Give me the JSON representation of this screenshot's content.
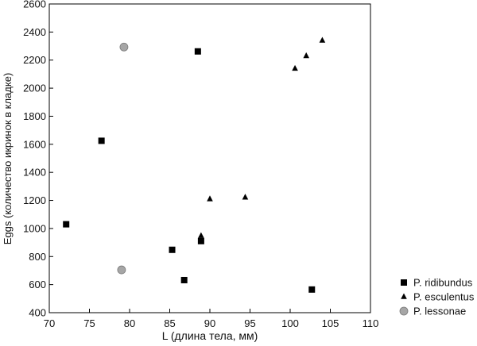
{
  "chart_data": {
    "type": "scatter",
    "xlabel": "L (длина тела, мм)",
    "ylabel": "Eggs (количество икринок в кладке)",
    "xlim": [
      70,
      110
    ],
    "ylim": [
      400,
      2600
    ],
    "xticks": [
      70,
      75,
      80,
      85,
      90,
      95,
      100,
      105,
      110
    ],
    "yticks": [
      400,
      600,
      800,
      1000,
      1200,
      1400,
      1600,
      1800,
      2000,
      2200,
      2400,
      2600
    ],
    "grid": false,
    "legend_position": "bottom-right",
    "series": [
      {
        "name": "P. ridibundus",
        "marker": "square",
        "color": "#000000",
        "points": [
          {
            "x": 72.1,
            "y": 1030
          },
          {
            "x": 76.5,
            "y": 1625
          },
          {
            "x": 85.3,
            "y": 848
          },
          {
            "x": 86.8,
            "y": 632
          },
          {
            "x": 88.5,
            "y": 2262
          },
          {
            "x": 88.9,
            "y": 910
          },
          {
            "x": 102.7,
            "y": 565
          }
        ]
      },
      {
        "name": "P. esculentus",
        "marker": "triangle",
        "color": "#000000",
        "points": [
          {
            "x": 88.9,
            "y": 948
          },
          {
            "x": 90.0,
            "y": 1210
          },
          {
            "x": 94.4,
            "y": 1222
          },
          {
            "x": 100.6,
            "y": 2140
          },
          {
            "x": 102.0,
            "y": 2230
          },
          {
            "x": 104.0,
            "y": 2340
          }
        ]
      },
      {
        "name": "P. lessonae",
        "marker": "circle",
        "color": "#a6a6a6",
        "points": [
          {
            "x": 79.3,
            "y": 2293
          },
          {
            "x": 79.0,
            "y": 705
          }
        ]
      }
    ]
  }
}
